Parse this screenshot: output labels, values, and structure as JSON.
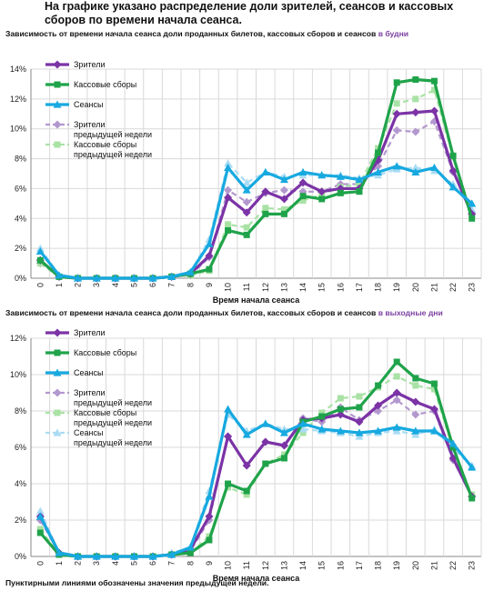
{
  "intro": "На графике указано распределение доли зрителей, сеансов и кассовых сборов по времени начала сеанса.",
  "footer": "Пунктирными линиями обозначены значения предыдущей недели.",
  "colors": {
    "viewers": "#7b33a6",
    "box": "#1fa34a",
    "sessions": "#17a9e0",
    "viewers_prev": "#b398cf",
    "box_prev": "#a9e2a5",
    "sessions_prev": "#a9dcf3",
    "grid": "#d9d9d9",
    "axis": "#888888",
    "highlight": "#7b3fa0"
  },
  "chart_data": [
    {
      "type": "line",
      "title": "Зависимость от времени начала сеанса доли проданных билетов, кассовых сборов и сеансов",
      "title_highlight": "в будни",
      "xlabel": "Время начала сеанса",
      "x": [
        0,
        1,
        2,
        3,
        4,
        5,
        6,
        7,
        8,
        9,
        10,
        11,
        12,
        13,
        14,
        15,
        16,
        17,
        18,
        19,
        20,
        21,
        22,
        23
      ],
      "ylim": [
        0,
        14
      ],
      "yticks": [
        0,
        2,
        4,
        6,
        8,
        10,
        12,
        14
      ],
      "ytick_labels": [
        "0%",
        "2%",
        "4%",
        "6%",
        "8%",
        "10%",
        "12%",
        "14%"
      ],
      "grid": true,
      "legend_position": "top-left",
      "series": [
        {
          "name": "Зрители",
          "key": "viewers",
          "dashed": false,
          "values": [
            1.2,
            0.1,
            0.0,
            0.0,
            0.0,
            0.0,
            0.0,
            0.1,
            0.3,
            1.5,
            5.4,
            4.4,
            5.8,
            5.3,
            6.4,
            5.8,
            6.0,
            6.0,
            7.9,
            11.0,
            11.1,
            11.2,
            7.2,
            4.3
          ]
        },
        {
          "name": "Кассовые сборы",
          "key": "box",
          "dashed": false,
          "values": [
            1.2,
            0.1,
            0.0,
            0.0,
            0.0,
            0.0,
            0.0,
            0.1,
            0.3,
            0.6,
            3.2,
            2.9,
            4.3,
            4.3,
            5.5,
            5.3,
            5.7,
            5.8,
            8.4,
            13.1,
            13.3,
            13.2,
            8.2,
            4.0
          ]
        },
        {
          "name": "Сеансы",
          "key": "sessions",
          "dashed": false,
          "values": [
            1.8,
            0.2,
            0.0,
            0.0,
            0.0,
            0.0,
            0.0,
            0.1,
            0.4,
            2.3,
            7.4,
            5.9,
            7.1,
            6.6,
            7.1,
            6.9,
            6.8,
            6.6,
            7.1,
            7.5,
            7.1,
            7.4,
            6.1,
            5.0
          ]
        },
        {
          "name": "Зрители\nпредыдущей недели",
          "key": "viewers_prev",
          "dashed": true,
          "values": [
            1.0,
            0.1,
            0.0,
            0.0,
            0.0,
            0.0,
            0.0,
            0.1,
            0.2,
            1.4,
            5.9,
            5.1,
            5.7,
            5.9,
            5.8,
            5.8,
            6.3,
            6.3,
            7.5,
            9.9,
            9.8,
            10.5,
            7.1,
            4.4
          ]
        },
        {
          "name": "Кассовые сборы\nпредыдущей недели",
          "key": "box_prev",
          "dashed": true,
          "values": [
            1.0,
            0.1,
            0.0,
            0.0,
            0.0,
            0.0,
            0.0,
            0.1,
            0.2,
            0.5,
            3.6,
            3.4,
            4.7,
            4.6,
            5.2,
            5.6,
            6.1,
            6.3,
            8.7,
            11.7,
            12.0,
            12.6,
            8.1,
            4.3
          ]
        },
        {
          "name": "",
          "key": "sessions_prev",
          "dashed": true,
          "legend": false,
          "values": [
            2.0,
            0.2,
            0.0,
            0.0,
            0.0,
            0.0,
            0.0,
            0.1,
            0.4,
            2.6,
            7.7,
            6.4,
            7.1,
            6.8,
            6.9,
            6.9,
            6.9,
            6.7,
            6.9,
            7.3,
            7.4,
            7.2,
            6.3,
            4.6
          ]
        }
      ]
    },
    {
      "type": "line",
      "title": "Зависимость от времени начала сеанса доли проданных билетов, кассовых сборов и сеансов",
      "title_highlight": "в выходные дни",
      "xlabel": "Время начала сеанса",
      "x": [
        0,
        1,
        2,
        3,
        4,
        5,
        6,
        7,
        8,
        9,
        10,
        11,
        12,
        13,
        14,
        15,
        16,
        17,
        18,
        19,
        20,
        21,
        22,
        23
      ],
      "ylim": [
        0,
        12
      ],
      "yticks": [
        0,
        2,
        4,
        6,
        8,
        10,
        12
      ],
      "ytick_labels": [
        "0%",
        "2%",
        "4%",
        "6%",
        "8%",
        "10%",
        "12%"
      ],
      "grid": true,
      "legend_position": "top-left",
      "series": [
        {
          "name": "Зрители",
          "key": "viewers",
          "dashed": false,
          "values": [
            2.2,
            0.2,
            0.0,
            0.0,
            0.0,
            0.0,
            0.0,
            0.1,
            0.4,
            2.2,
            6.6,
            5.0,
            6.3,
            6.1,
            7.5,
            7.6,
            7.8,
            7.4,
            8.3,
            9.0,
            8.5,
            8.1,
            5.4,
            3.3
          ]
        },
        {
          "name": "Кассовые сборы",
          "key": "box",
          "dashed": false,
          "values": [
            1.3,
            0.1,
            0.0,
            0.0,
            0.0,
            0.0,
            0.0,
            0.1,
            0.2,
            0.9,
            4.0,
            3.6,
            5.1,
            5.4,
            7.4,
            7.7,
            8.1,
            8.2,
            9.4,
            10.7,
            9.8,
            9.5,
            6.0,
            3.2
          ]
        },
        {
          "name": "Сеансы",
          "key": "sessions",
          "dashed": false,
          "values": [
            2.2,
            0.2,
            0.0,
            0.0,
            0.0,
            0.0,
            0.0,
            0.1,
            0.5,
            3.3,
            8.1,
            6.7,
            7.3,
            6.8,
            7.3,
            7.0,
            6.9,
            6.8,
            6.9,
            7.1,
            6.9,
            6.9,
            6.2,
            4.9
          ]
        },
        {
          "name": "Зрители\nпредыдущей недели",
          "key": "viewers_prev",
          "dashed": true,
          "values": [
            2.0,
            0.2,
            0.0,
            0.0,
            0.0,
            0.0,
            0.0,
            0.1,
            0.3,
            2.0,
            6.6,
            5.0,
            6.3,
            6.1,
            7.6,
            7.4,
            8.2,
            7.5,
            8.0,
            8.6,
            7.8,
            8.0,
            5.3,
            3.3
          ]
        },
        {
          "name": "Кассовые сборы\nпредыдущей недели",
          "key": "box_prev",
          "dashed": true,
          "values": [
            1.5,
            0.1,
            0.0,
            0.0,
            0.0,
            0.0,
            0.0,
            0.1,
            0.2,
            1.1,
            3.8,
            3.4,
            5.1,
            5.6,
            6.8,
            7.9,
            8.7,
            8.8,
            9.3,
            9.9,
            9.4,
            9.2,
            5.9,
            3.4
          ]
        },
        {
          "name": "Сеансы\nпредыдущей недели",
          "key": "sessions_prev",
          "dashed": true,
          "values": [
            2.5,
            0.2,
            0.0,
            0.0,
            0.0,
            0.0,
            0.0,
            0.2,
            0.5,
            3.6,
            7.8,
            6.9,
            7.3,
            7.0,
            7.0,
            6.9,
            6.8,
            6.6,
            6.8,
            6.9,
            6.7,
            7.0,
            5.9,
            5.0
          ]
        }
      ]
    }
  ]
}
